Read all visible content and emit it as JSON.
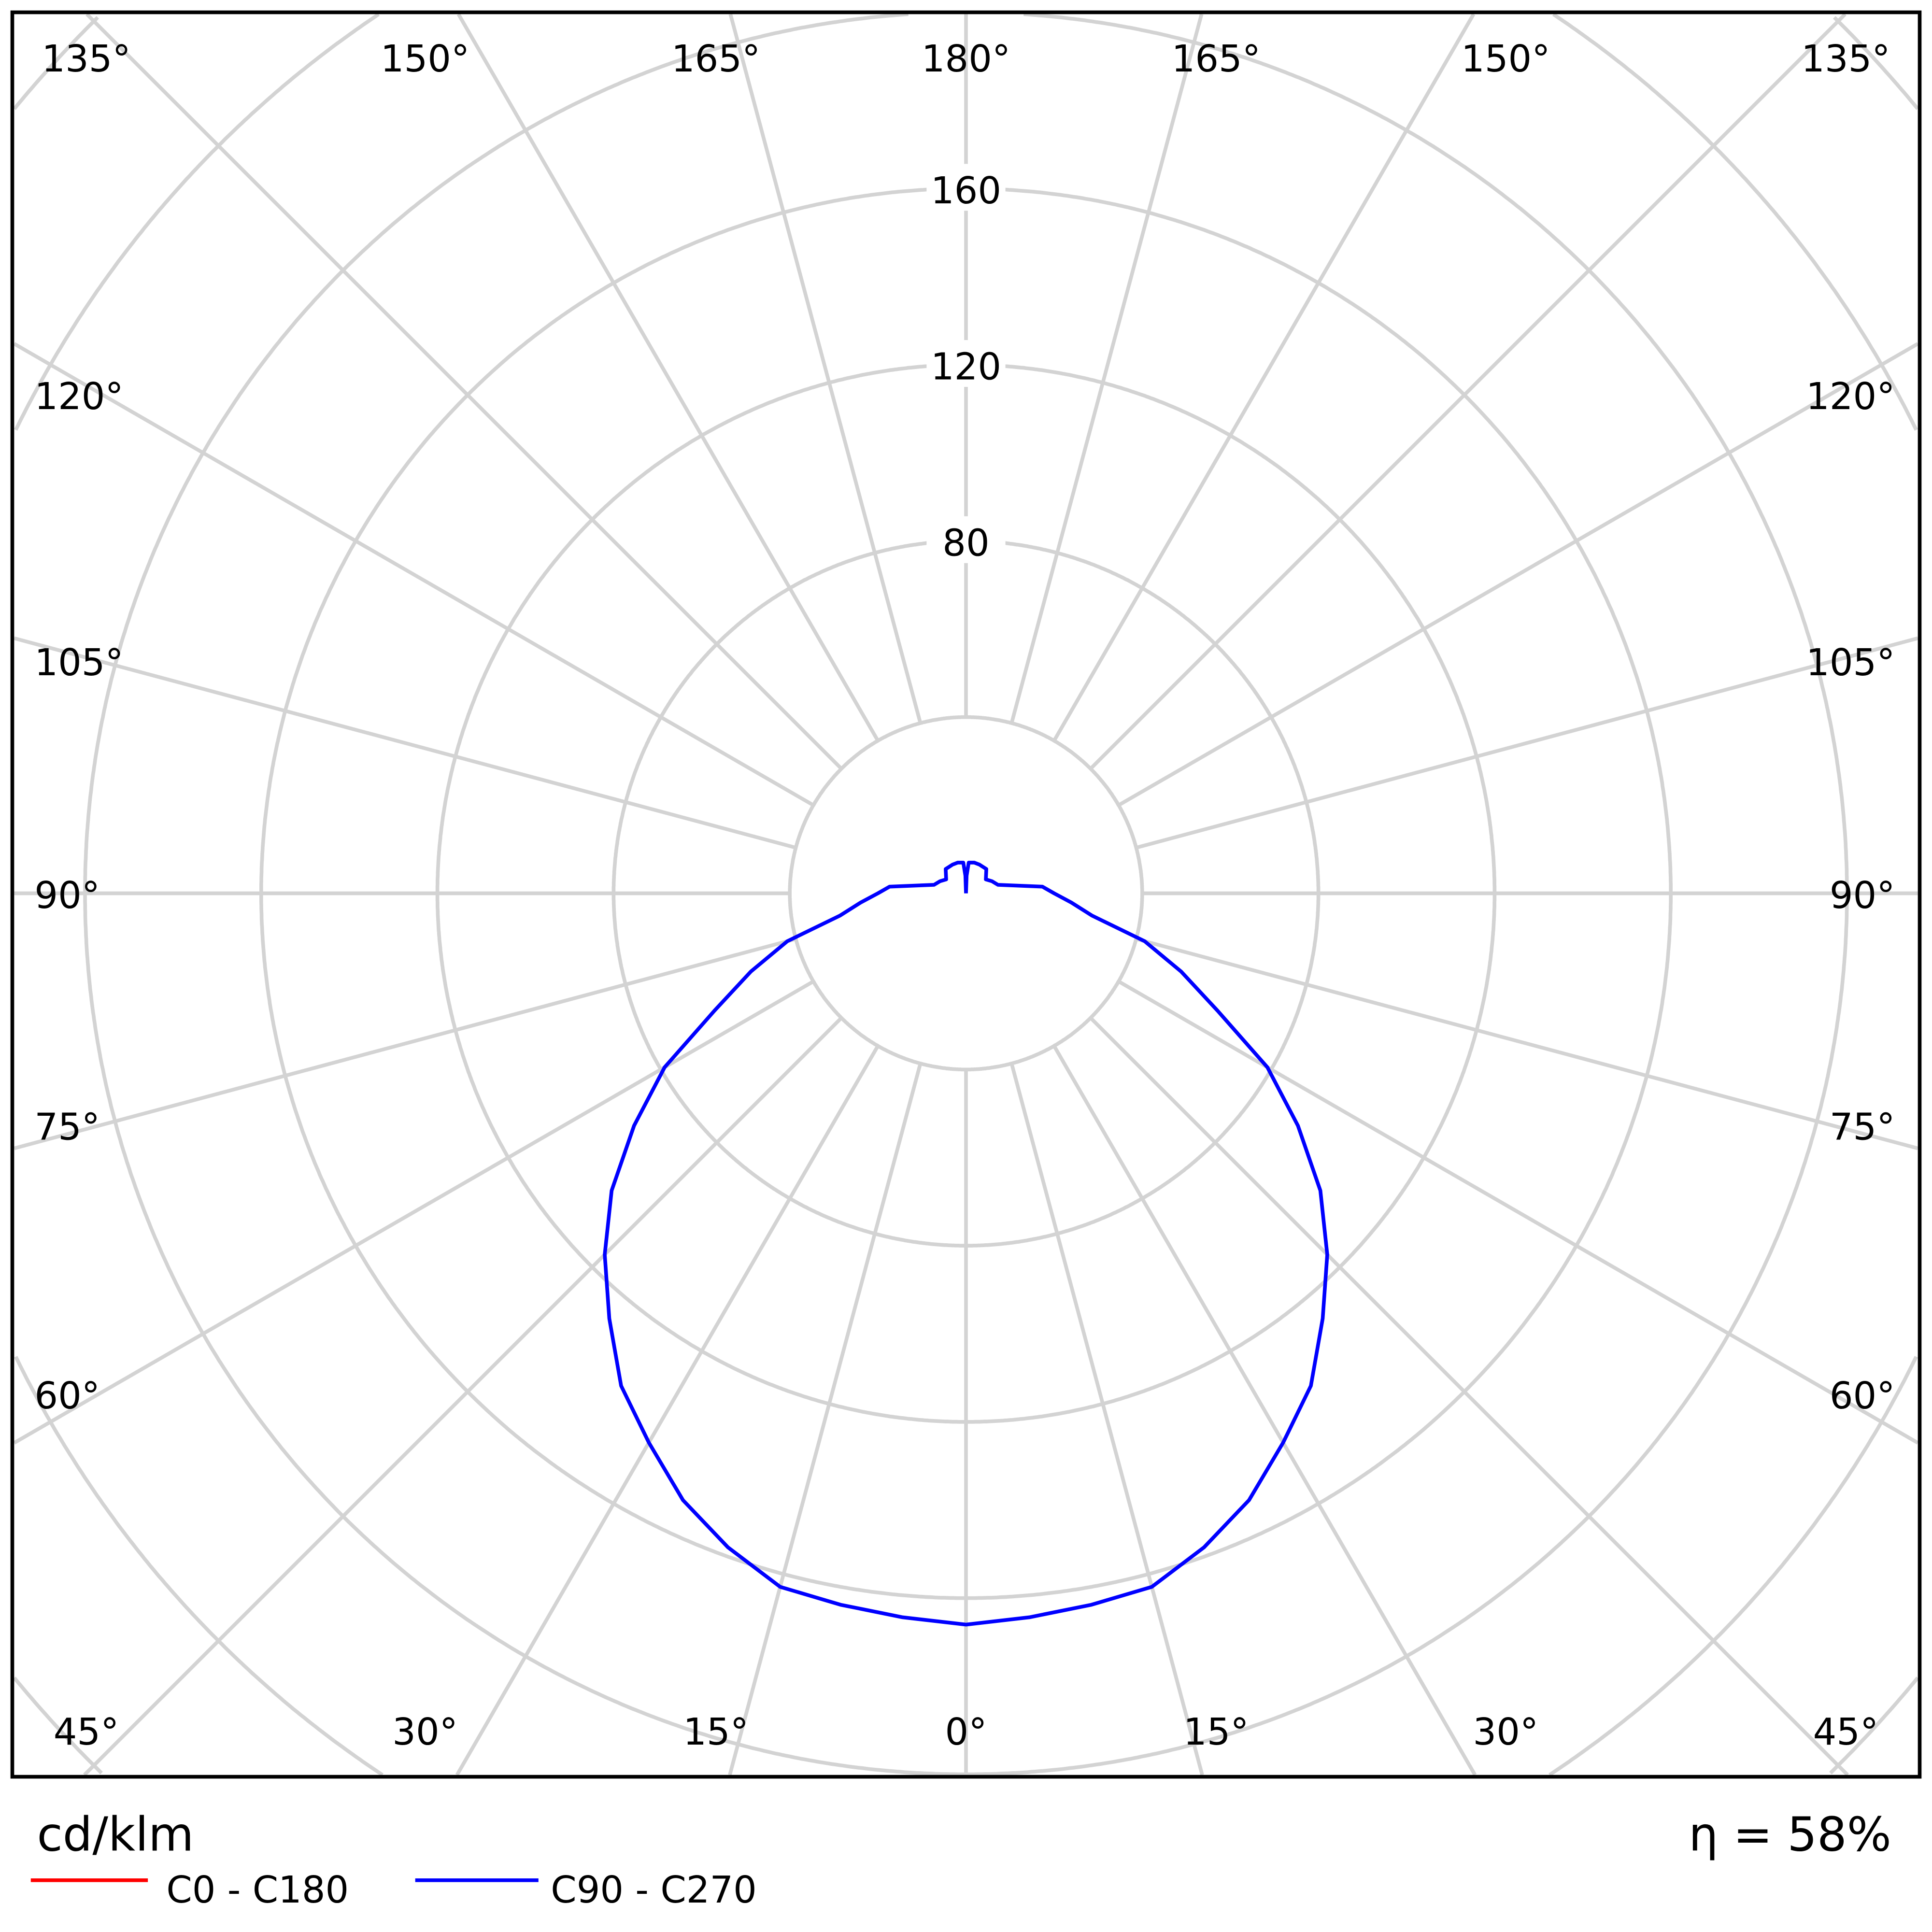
{
  "chart_data": {
    "type": "polar",
    "unit_label": "cd/klm",
    "efficiency_label": "η = 58%",
    "radial_ticks": [
      40,
      80,
      120,
      160,
      200,
      240,
      280
    ],
    "radial_tick_labels": [
      "80",
      "120",
      "160"
    ],
    "angle_labels": {
      "top": [
        "135°",
        "150°",
        "165°",
        "180°",
        "165°",
        "150°",
        "135°"
      ],
      "left": [
        "120°",
        "105°",
        "90°",
        "75°",
        "60°"
      ],
      "right": [
        "120°",
        "105°",
        "90°",
        "75°",
        "60°"
      ],
      "bottom": [
        "45°",
        "30°",
        "15°",
        "0°",
        "15°",
        "30°",
        "45°"
      ]
    },
    "grid": true,
    "legend_placement": "bottom-left",
    "series": [
      {
        "name": "C0 - C180",
        "color": "#ff0000",
        "angles": [],
        "values": []
      },
      {
        "name": "C90 - C270",
        "color": "#0000ff",
        "angles": [
          0,
          5,
          10,
          15,
          20,
          25,
          30,
          35,
          40,
          45,
          50,
          55,
          60,
          65,
          70,
          75,
          80,
          85,
          90,
          95,
          105,
          115,
          125,
          140,
          155,
          165,
          175,
          178,
          180
        ],
        "values": [
          166,
          165,
          164,
          163,
          158,
          152,
          144,
          136.5,
          126,
          116,
          105,
          92,
          79,
          63,
          52,
          42,
          29,
          24,
          20,
          17.4,
          7.5,
          6.5,
          5.5,
          7.2,
          7.2,
          7.2,
          7,
          4,
          0
        ]
      }
    ]
  }
}
